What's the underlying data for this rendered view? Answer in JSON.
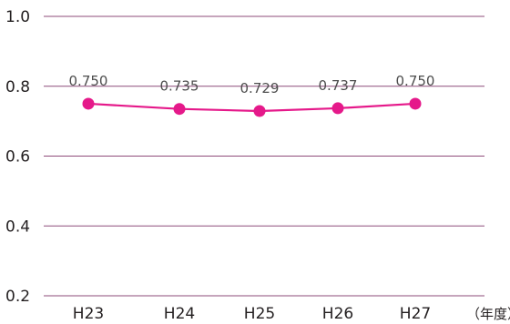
{
  "chart_data": {
    "type": "line",
    "categories": [
      "H23",
      "H24",
      "H25",
      "H26",
      "H27"
    ],
    "series": [
      {
        "values": [
          0.75,
          0.735,
          0.729,
          0.737,
          0.75
        ]
      }
    ],
    "data_labels": [
      "0.750",
      "0.735",
      "0.729",
      "0.737",
      "0.750"
    ],
    "y_ticks": [
      "0.2",
      "0.4",
      "0.6",
      "0.8",
      "1.0"
    ],
    "ylim": [
      0.2,
      1.0
    ],
    "x_unit_label": "（年度）",
    "grid": true,
    "colors": {
      "line": "#e5198a",
      "grid": "#8e4b7a",
      "text": "#231f20"
    }
  }
}
